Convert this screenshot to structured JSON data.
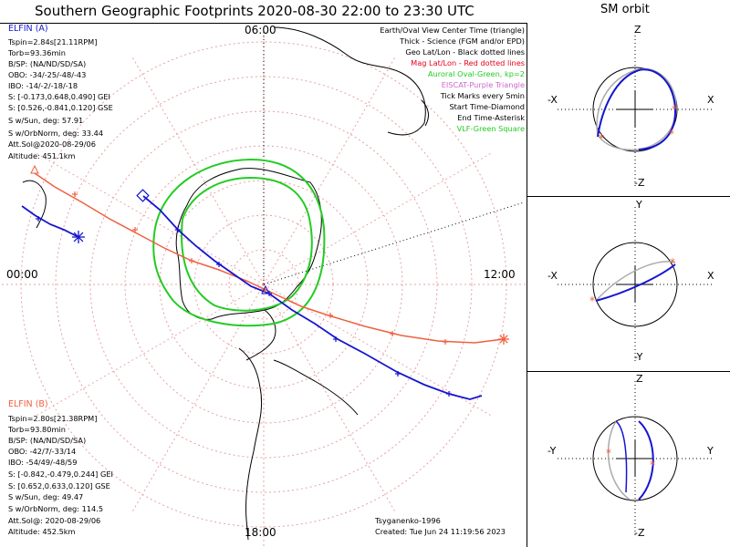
{
  "title": "Southern Geographic Footprints 2020-08-30 22:00 to 23:30 UTC",
  "orbit_title": "SM orbit",
  "map": {
    "mlt_labels": {
      "top": "06:00",
      "left": "00:00",
      "right": "12:00",
      "bottom": "18:00"
    }
  },
  "legend": [
    {
      "text": "Earth/Oval View Center Time (triangle)",
      "color": "#000000"
    },
    {
      "text": "Thick - Science (FGM and/or EPD)",
      "color": "#000000"
    },
    {
      "text": "Geo Lat/Lon - Black dotted lines",
      "color": "#000000"
    },
    {
      "text": "Mag Lat/Lon - Red dotted lines",
      "color": "#e8001c"
    },
    {
      "text": "Auroral Oval-Green, kp=2",
      "color": "#22cc22"
    },
    {
      "text": "EISCAT-Purple Triangle",
      "color": "#cc66cc"
    },
    {
      "text": "Tick Marks every 5min",
      "color": "#000000"
    },
    {
      "text": "Start Time-Diamond",
      "color": "#000000"
    },
    {
      "text": "End Time-Asterisk",
      "color": "#000000"
    },
    {
      "text": "VLF-Green Square",
      "color": "#22cc22"
    }
  ],
  "elfin_a": {
    "name": "ELFIN (A)",
    "color": "#1515d0",
    "lines": [
      "Tspin=2.84s[21.11RPM]",
      "Torb=93.36min",
      "B/SP: (NA/ND/SD/SA)",
      "OBO: -34/-25/-48/-43",
      "IBO: -14/-2/-18/-18",
      "S: [-0.173,0.648,0.490] GEI",
      "S: [0.526,-0.841,0.120] GSE",
      "S w/Sun, deg: 57.91",
      "S w/OrbNorm, deg: 33.44",
      "Att.Sol@2020-08-29/06",
      "Altitude: 451.1km"
    ]
  },
  "elfin_b": {
    "name": "ELFIN (B)",
    "color": "#f06040",
    "lines": [
      "Tspin=2.80s[21.38RPM]",
      "Torb=93.80min",
      "B/SP: (NA/ND/SD/SA)",
      "OBO: -42/7/-33/14",
      "IBO: -54/49/-48/59",
      "S: [-0.842,-0.479,0.244] GEI",
      "S: [0.652,0.633,0.120] GSE",
      "S w/Sun, deg: 49.47",
      "S w/OrbNorm, deg: 114.5",
      "Att.Sol@: 2020-08-29/06",
      "Altitude: 452.5km"
    ]
  },
  "credits": {
    "model": "Tsyganenko-1996",
    "created": "Created: Tue Jun 24 11:19:56 2023"
  },
  "orbit_panels": [
    {
      "top": "Z",
      "bottom": "-Z",
      "left": "-X",
      "right": "X"
    },
    {
      "top": "Y",
      "bottom": "-Y",
      "left": "-X",
      "right": "X"
    },
    {
      "top": "Z",
      "bottom": "-Z",
      "left": "-Y",
      "right": "Y"
    }
  ],
  "colors": {
    "elfin_a": "#1515d0",
    "elfin_b": "#f06040",
    "grid": "#e8a0a0",
    "oval": "#22cc22",
    "orbit_gray": "#aaaaaa"
  }
}
